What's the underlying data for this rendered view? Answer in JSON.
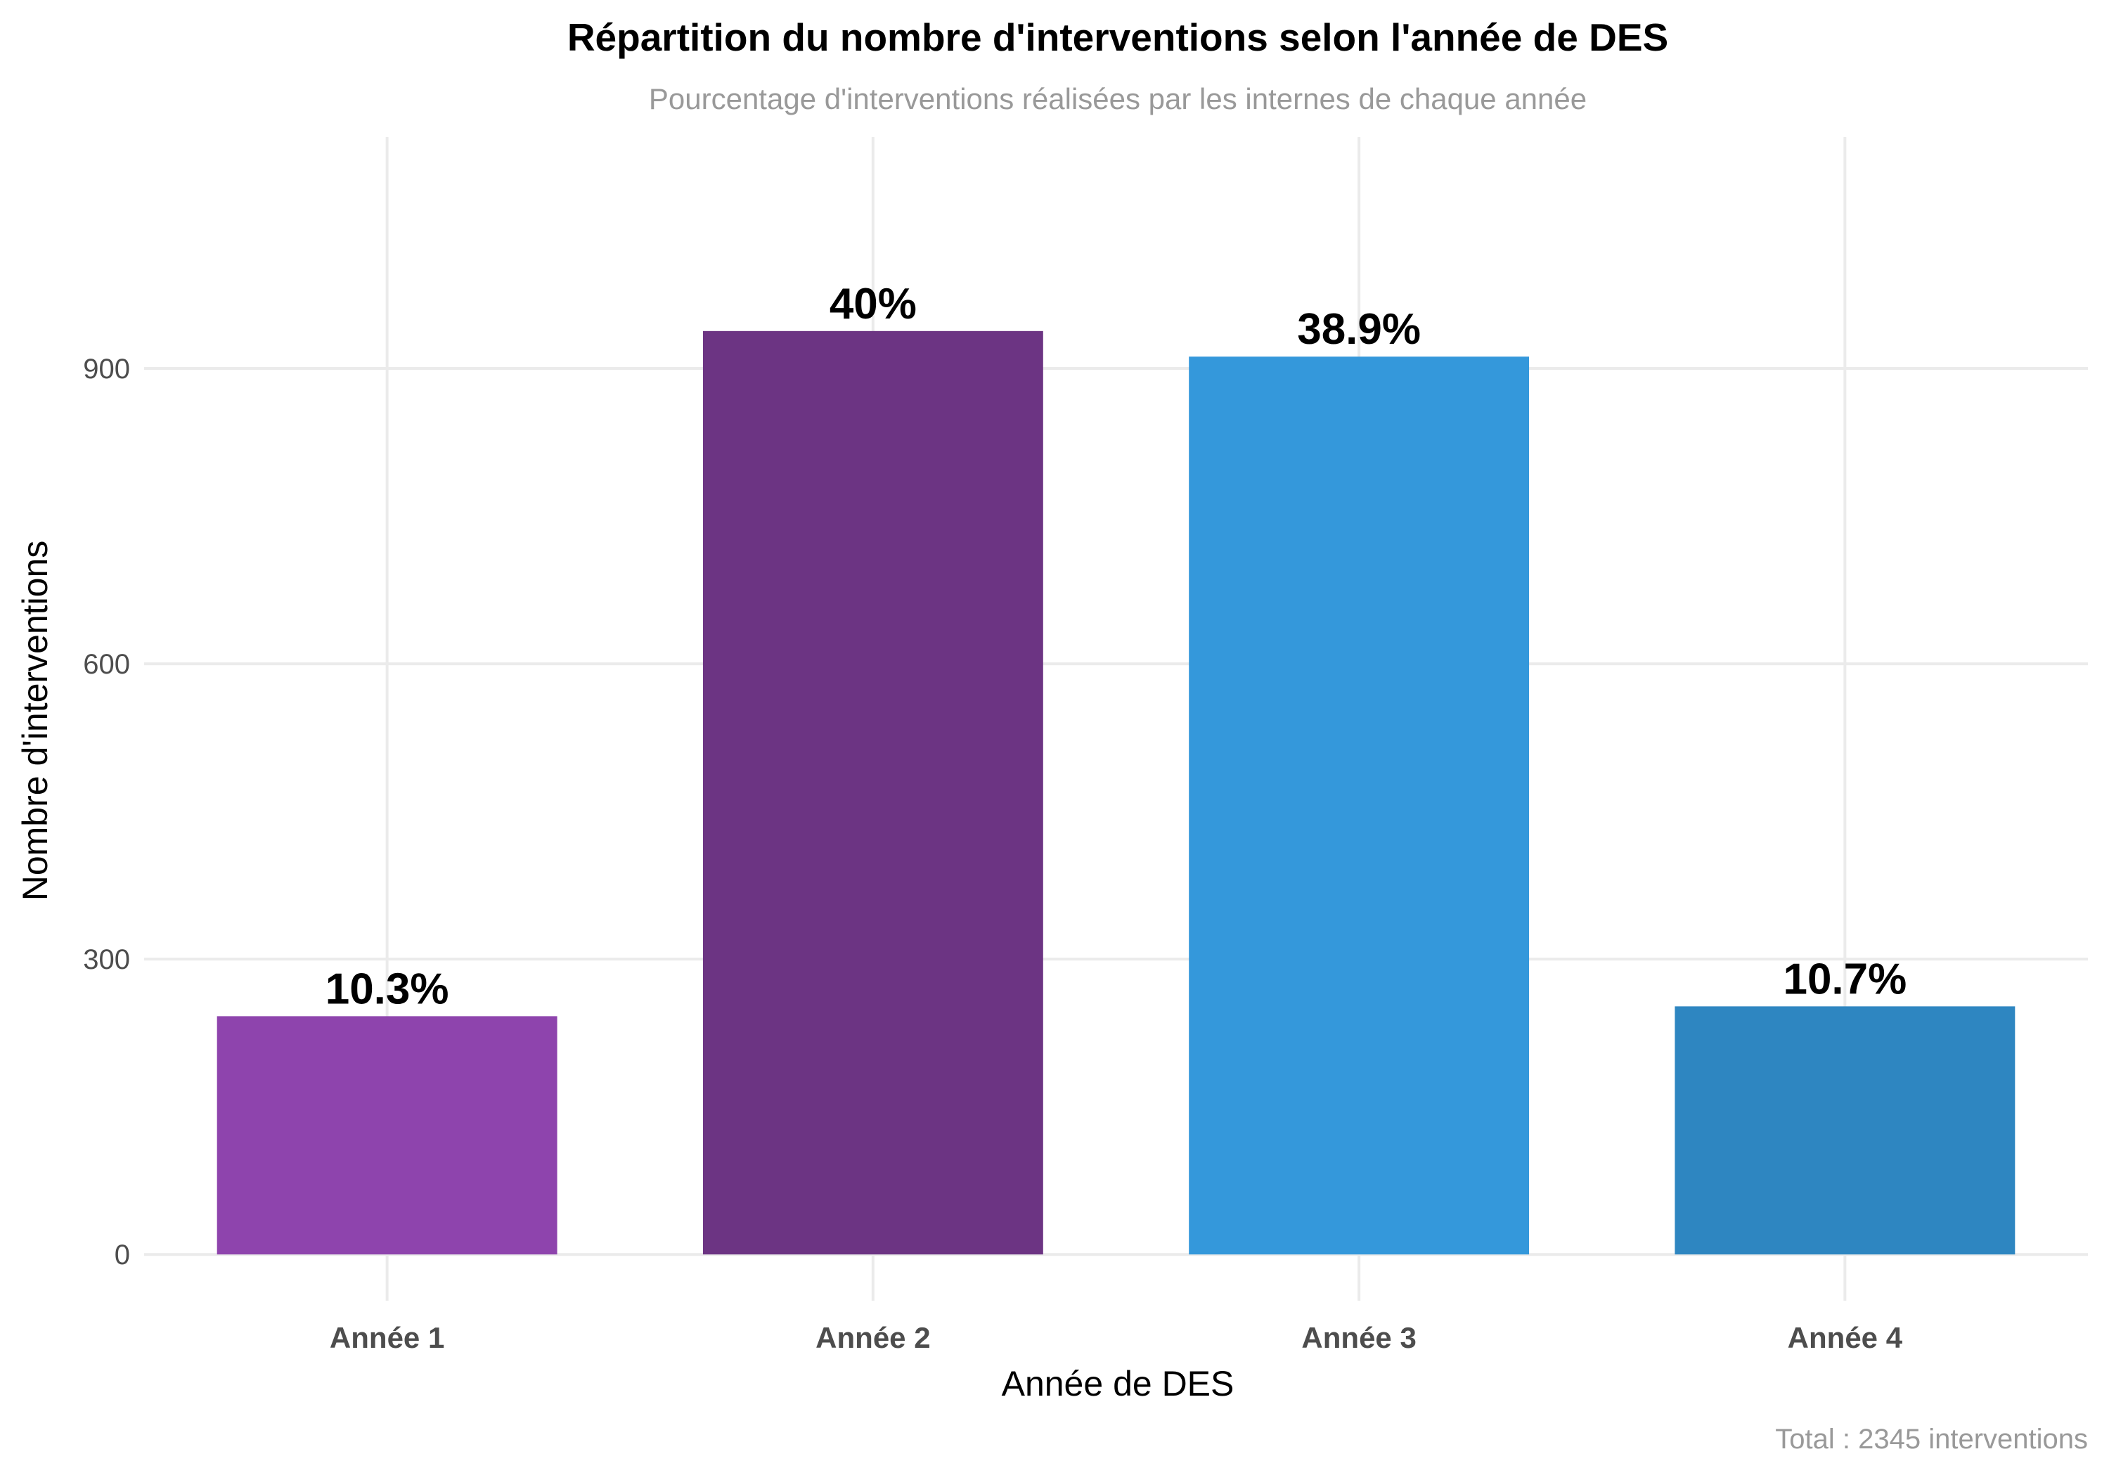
{
  "chart_data": {
    "type": "bar",
    "title": "Répartition du nombre d'interventions selon l'année de DES",
    "subtitle": "Pourcentage d'interventions réalisées par les internes de chaque année",
    "xlabel": "Année de DES",
    "ylabel": "Nombre d'interventions",
    "caption": "Total : 2345 interventions",
    "categories": [
      "Année 1",
      "Année 2",
      "Année 3",
      "Année 4"
    ],
    "values": [
      242,
      938,
      912,
      252
    ],
    "labels": [
      "10.3%",
      "40%",
      "38.9%",
      "10.7%"
    ],
    "colors": [
      "#8E44AD",
      "#6C3483",
      "#3498DB",
      "#2E86C1"
    ],
    "yticks": [
      0,
      300,
      600,
      900
    ],
    "ylim": [
      -47,
      1135
    ],
    "grid": true,
    "legend": "none"
  }
}
